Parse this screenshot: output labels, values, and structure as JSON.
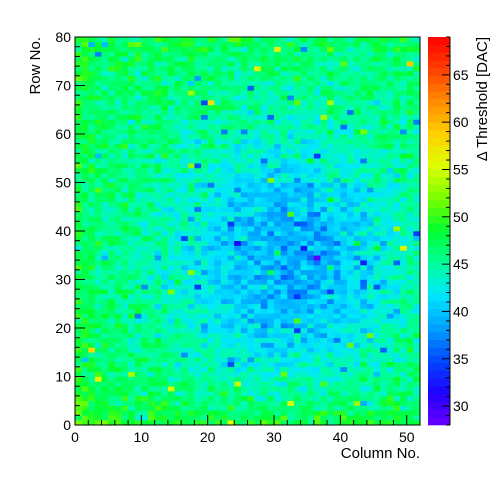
{
  "chart_data": {
    "type": "heatmap",
    "title": "",
    "xlabel": "Column No.",
    "ylabel": "Row No.",
    "zlabel": "Δ Threshold [DAC]",
    "xlim": [
      0,
      52
    ],
    "ylim": [
      0,
      80
    ],
    "zlim": [
      28,
      69
    ],
    "n_columns": 52,
    "n_rows": 80,
    "x_ticks": [
      "0",
      "10",
      "20",
      "30",
      "40",
      "50"
    ],
    "y_ticks": [
      "0",
      "10",
      "20",
      "30",
      "40",
      "50",
      "60",
      "70",
      "80"
    ],
    "z_ticks": [
      "30",
      "35",
      "40",
      "45",
      "50",
      "55",
      "60",
      "65"
    ],
    "grid": false,
    "colormap": "rainbow",
    "description_of_values": {
      "typical_range": [
        38,
        50
      ],
      "low_cluster_center": {
        "column": 32,
        "row": 34,
        "value": 35
      },
      "high_edge_region": "rows 0-10 and column 0 reach 52-60",
      "isolated_high_pixels": "scattered values up to ~60 near edges"
    },
    "colors": {
      "palette_stops": [
        "#6a00ff",
        "#2000ff",
        "#0048ff",
        "#00a0ff",
        "#00e6ff",
        "#00ff9c",
        "#00ff32",
        "#78ff00",
        "#dcff00",
        "#ffd000",
        "#ff8c00",
        "#ff4000",
        "#ff0000"
      ],
      "frame": "#000000",
      "background": "#ffffff"
    }
  }
}
